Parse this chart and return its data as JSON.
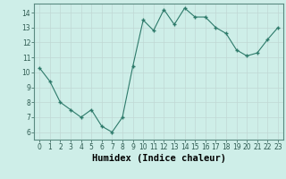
{
  "x": [
    0,
    1,
    2,
    3,
    4,
    5,
    6,
    7,
    8,
    9,
    10,
    11,
    12,
    13,
    14,
    15,
    16,
    17,
    18,
    19,
    20,
    21,
    22,
    23
  ],
  "y": [
    10.3,
    9.4,
    8.0,
    7.5,
    7.0,
    7.5,
    6.4,
    6.0,
    7.0,
    10.4,
    13.5,
    12.8,
    14.2,
    13.2,
    14.3,
    13.7,
    13.7,
    13.0,
    12.6,
    11.5,
    11.1,
    11.3,
    12.2,
    13.0
  ],
  "xlabel": "Humidex (Indice chaleur)",
  "bg_color": "#ceeee8",
  "grid_color": "#c0d8d4",
  "line_color": "#2d7a6a",
  "marker_color": "#2d7a6a",
  "ylim": [
    5.5,
    14.6
  ],
  "xlim": [
    -0.5,
    23.5
  ],
  "yticks": [
    6,
    7,
    8,
    9,
    10,
    11,
    12,
    13,
    14
  ],
  "xticks": [
    0,
    1,
    2,
    3,
    4,
    5,
    6,
    7,
    8,
    9,
    10,
    11,
    12,
    13,
    14,
    15,
    16,
    17,
    18,
    19,
    20,
    21,
    22,
    23
  ],
  "tick_fontsize": 5.5,
  "xlabel_fontsize": 7.5
}
